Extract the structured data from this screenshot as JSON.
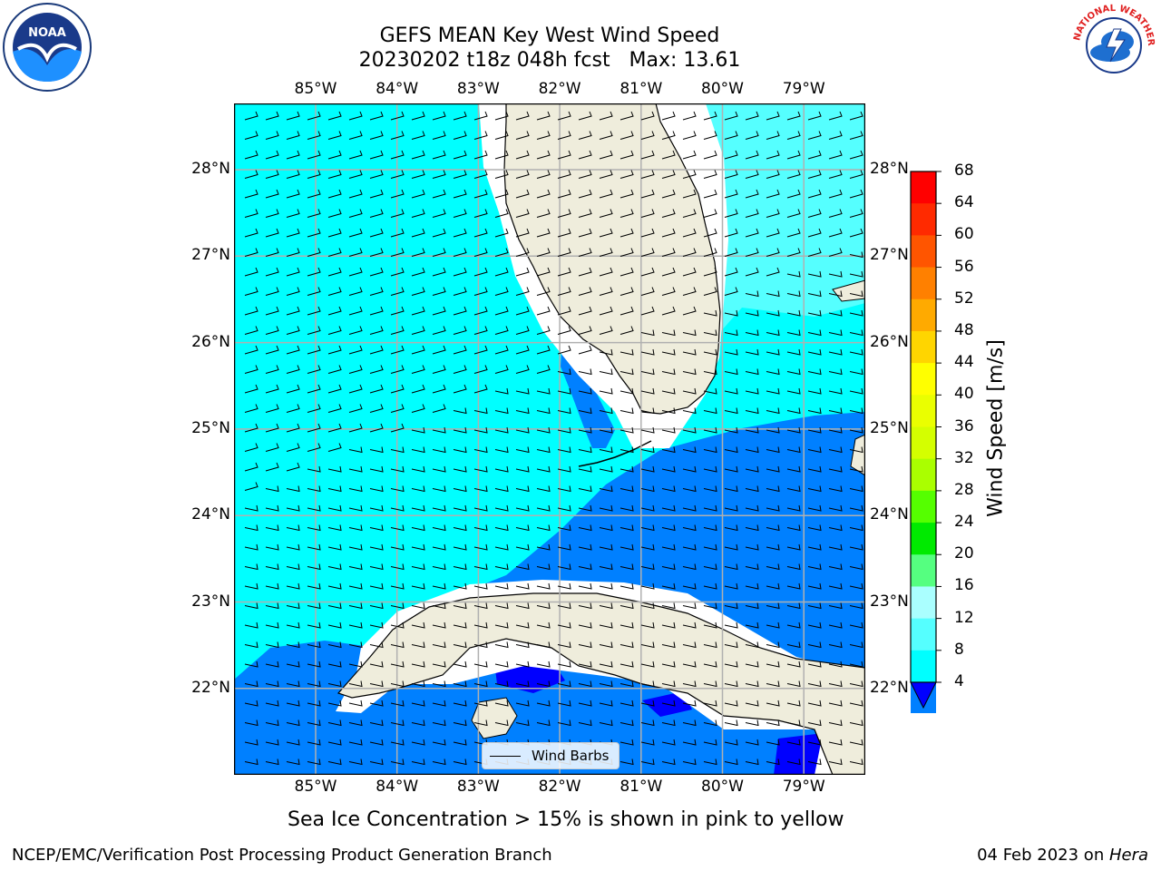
{
  "header": {
    "title_line1": "GEFS MEAN Key West Wind Speed",
    "title_line2": "20230202 t18z 048h fcst   Max: 13.61"
  },
  "logos": {
    "left": {
      "icon": "noaa-logo-icon",
      "text": "NOAA"
    },
    "right": {
      "icon": "national-weather-service-logo-icon",
      "text": "NATIONAL WEATHER SERVICE"
    }
  },
  "map": {
    "longitude_labels": [
      "85°W",
      "84°W",
      "83°W",
      "82°W",
      "81°W",
      "80°W",
      "79°W"
    ],
    "latitude_labels": [
      "28°N",
      "27°N",
      "26°N",
      "25°N",
      "24°N",
      "23°N",
      "22°N"
    ],
    "colors": {
      "land": "#efeddc",
      "speed_4_8": "#0080ff",
      "speed_8_12": "#00ffff",
      "speed_12_16": "#55ffff",
      "speed_below_4": "#0000ff",
      "grid": "#b0b0b0"
    },
    "legend_label": "Wind Barbs"
  },
  "colorbar": {
    "label": "Wind Speed [m/s]",
    "ticks": [
      "68",
      "64",
      "60",
      "56",
      "52",
      "48",
      "44",
      "40",
      "36",
      "32",
      "28",
      "24",
      "20",
      "16",
      "12",
      "8",
      "4"
    ],
    "colors": [
      "#ff0000",
      "#ff2a00",
      "#ff5500",
      "#ff8000",
      "#ffaa00",
      "#ffd500",
      "#ffff00",
      "#eaff00",
      "#d4ff00",
      "#aaff00",
      "#55ff00",
      "#00ea00",
      "#55ff80",
      "#aaffff",
      "#55ffff",
      "#00ffff",
      "#0080ff"
    ],
    "under_color": "#0000ff"
  },
  "caption": "Sea Ice Concentration > 15% is shown in pink to yellow",
  "footer": {
    "left": "NCEP/EMC/Verification Post Processing Product Generation Branch",
    "right_prefix": "04 Feb 2023 on ",
    "right_host": "Hera"
  }
}
